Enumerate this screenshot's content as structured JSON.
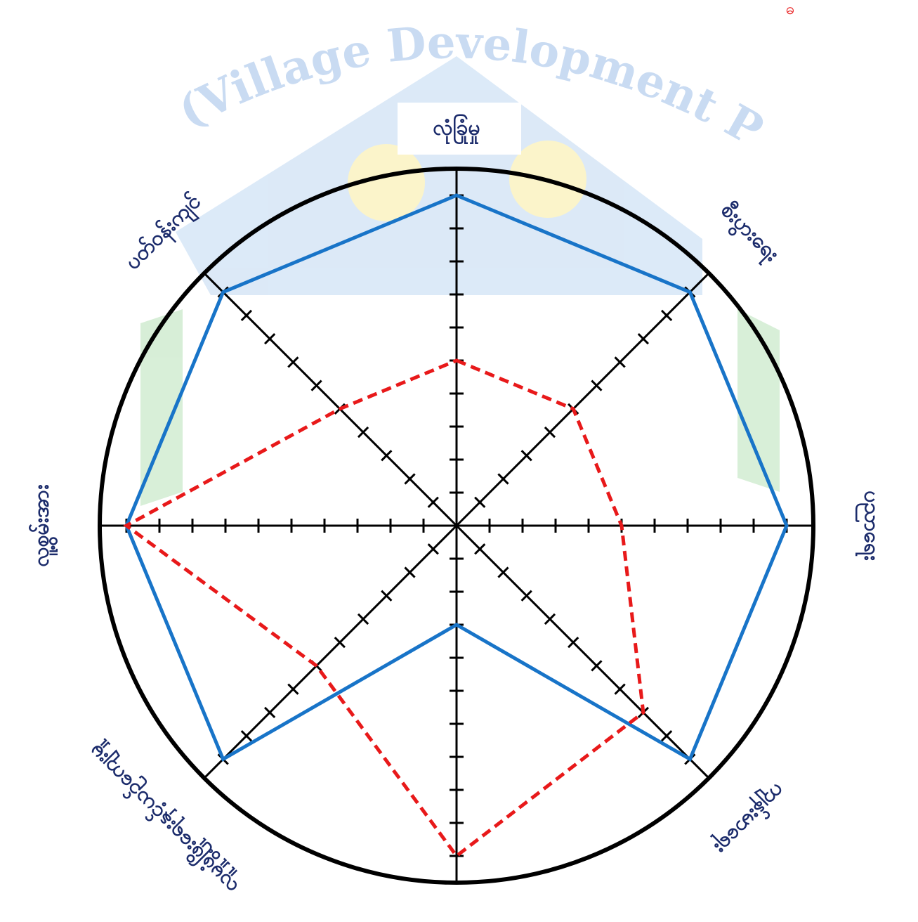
{
  "watermark": "VDP (Village Development Plan)",
  "corner_mark": "ဓ",
  "chart_data": {
    "type": "radar",
    "categories": [
      "လုံခြုံမှု",
      "စီးပွားရေး",
      "ပညာရေး",
      "ကျန်းမာရေး",
      "လမ်းပန်းဆက်သွယ်ရေး",
      "လူမှုဖွံ့ဖြိုးရေးနှင့်ယဉ်ကျေးမှု",
      "လူ့စွမ်းအား",
      "ပတ်ဝန်းကျင်"
    ],
    "rlim": [
      0,
      10
    ],
    "rticks": [
      1,
      2,
      3,
      4,
      5,
      6,
      7,
      8,
      9,
      10
    ],
    "series": [
      {
        "color": "#1874c8",
        "dashed": false,
        "values": [
          10,
          10,
          10,
          10,
          3,
          10,
          10,
          10
        ]
      },
      {
        "color": "#e8191a",
        "dashed": true,
        "values": [
          5,
          5,
          5,
          8,
          10,
          6,
          10,
          5
        ]
      }
    ]
  }
}
